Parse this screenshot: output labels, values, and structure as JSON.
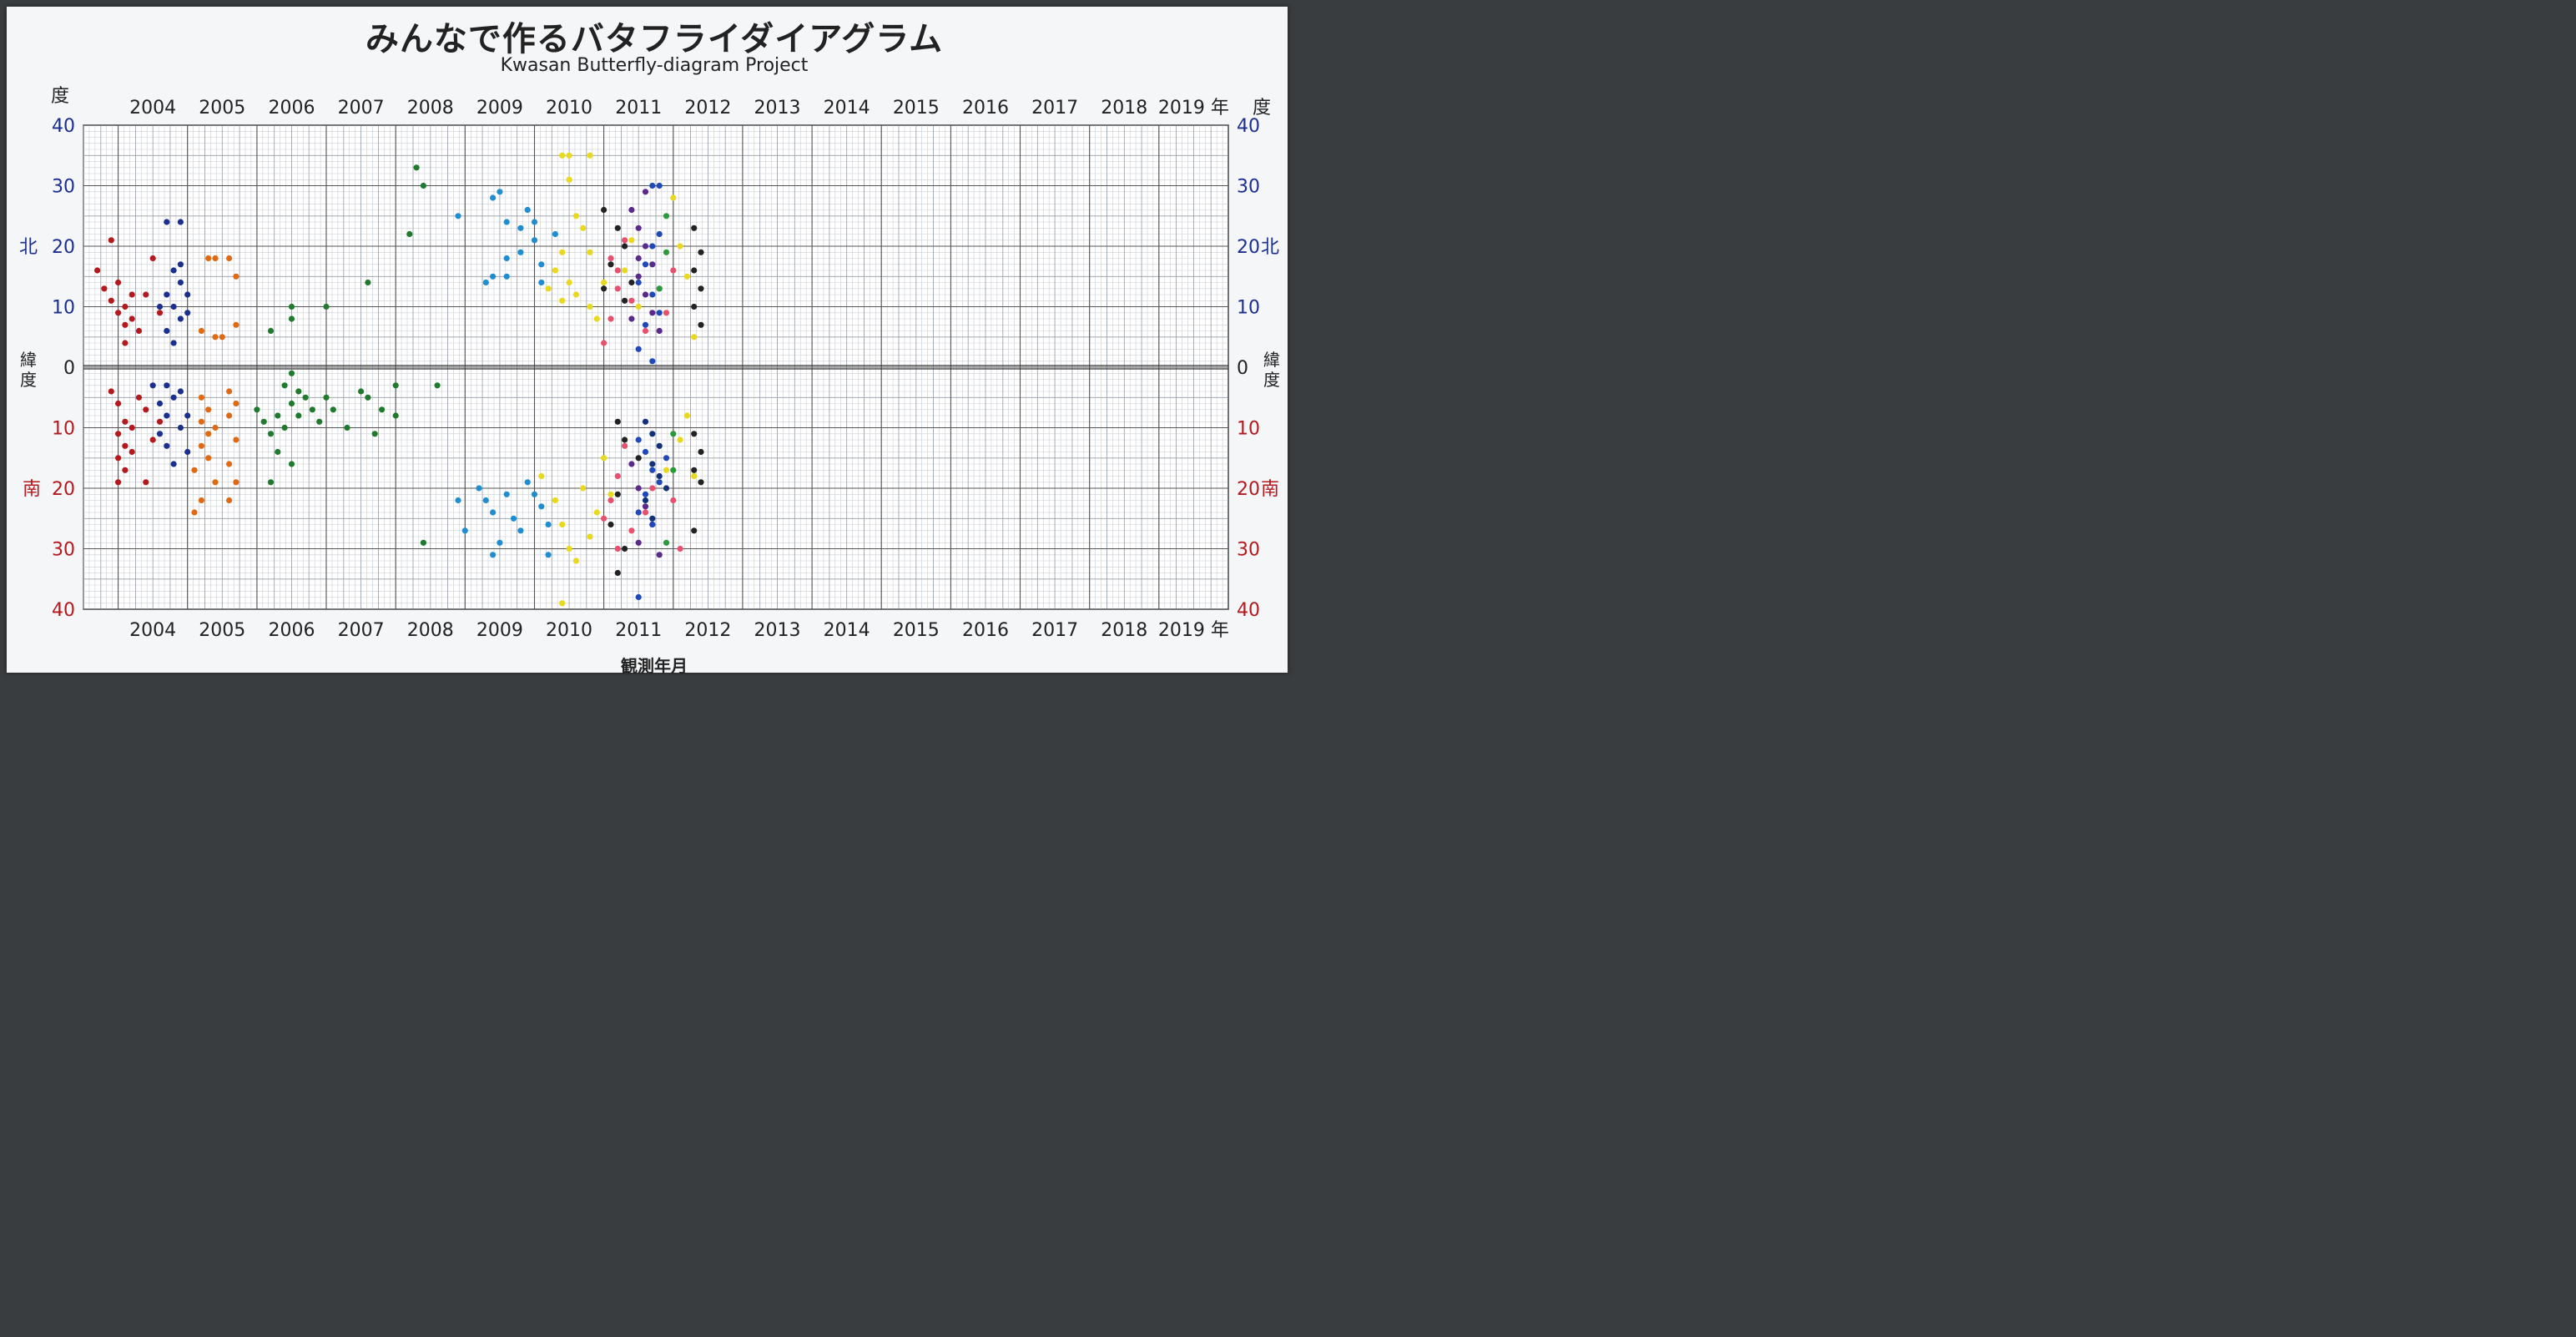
{
  "title": "みんなで作るバタフライダイアグラム",
  "subtitle": "Kwasan Butterfly-diagram Project",
  "chart_data": {
    "type": "scatter",
    "title": "みんなで作るバタフライダイアグラム",
    "subtitle": "Kwasan Butterfly-diagram Project",
    "xlabel": "観測年月",
    "ylabel_top": "度",
    "ylabel_left": "緯度",
    "north_label": "北",
    "south_label": "南",
    "year_suffix": "年",
    "years": [
      "2004",
      "2005",
      "2006",
      "2007",
      "2008",
      "2009",
      "2010",
      "2011",
      "2012",
      "2013",
      "2014",
      "2015",
      "2016",
      "2017",
      "2018",
      "2019"
    ],
    "xlim": [
      2003.5,
      2020.0
    ],
    "ylim": [
      -40,
      40
    ],
    "y_ticks": [
      40,
      30,
      20,
      10,
      0,
      -10,
      -20,
      -30,
      -40
    ],
    "y_tick_labels": [
      "40",
      "30",
      "20",
      "10",
      "0",
      "10",
      "20",
      "30",
      "40"
    ],
    "grid": true,
    "series": [
      {
        "color": "#b3191d",
        "points": [
          [
            2003.9,
            21
          ],
          [
            2003.7,
            16
          ],
          [
            2003.8,
            13
          ],
          [
            2003.9,
            11
          ],
          [
            2004.0,
            9
          ],
          [
            2004.1,
            7
          ],
          [
            2004.0,
            14
          ],
          [
            2004.2,
            12
          ],
          [
            2004.1,
            10
          ],
          [
            2004.2,
            8
          ],
          [
            2004.3,
            6
          ],
          [
            2004.1,
            4
          ],
          [
            2004.4,
            12
          ],
          [
            2004.6,
            9
          ],
          [
            2004.5,
            18
          ],
          [
            2003.9,
            -4
          ],
          [
            2004.0,
            -6
          ],
          [
            2004.1,
            -9
          ],
          [
            2004.0,
            -11
          ],
          [
            2004.1,
            -13
          ],
          [
            2004.0,
            -15
          ],
          [
            2004.1,
            -17
          ],
          [
            2004.2,
            -10
          ],
          [
            2004.0,
            -19
          ],
          [
            2004.2,
            -14
          ],
          [
            2004.4,
            -7
          ],
          [
            2004.5,
            -12
          ],
          [
            2004.6,
            -9
          ],
          [
            2004.4,
            -19
          ],
          [
            2004.3,
            -5
          ]
        ]
      },
      {
        "color": "#1b2f8f",
        "points": [
          [
            2004.7,
            24
          ],
          [
            2004.9,
            24
          ],
          [
            2004.8,
            16
          ],
          [
            2004.9,
            14
          ],
          [
            2004.7,
            12
          ],
          [
            2004.6,
            10
          ],
          [
            2004.8,
            10
          ],
          [
            2004.9,
            8
          ],
          [
            2004.7,
            6
          ],
          [
            2004.8,
            4
          ],
          [
            2005.0,
            12
          ],
          [
            2005.0,
            9
          ],
          [
            2004.9,
            17
          ],
          [
            2004.5,
            -3
          ],
          [
            2004.6,
            -6
          ],
          [
            2004.7,
            -8
          ],
          [
            2004.8,
            -5
          ],
          [
            2004.6,
            -11
          ],
          [
            2004.7,
            -13
          ],
          [
            2004.8,
            -16
          ],
          [
            2004.9,
            -10
          ],
          [
            2005.0,
            -8
          ],
          [
            2005.0,
            -14
          ],
          [
            2004.9,
            -4
          ],
          [
            2004.7,
            -3
          ]
        ]
      },
      {
        "color": "#e06a14",
        "points": [
          [
            2005.3,
            18
          ],
          [
            2005.4,
            18
          ],
          [
            2005.6,
            18
          ],
          [
            2005.7,
            15
          ],
          [
            2005.7,
            7
          ],
          [
            2005.4,
            5
          ],
          [
            2005.2,
            6
          ],
          [
            2005.5,
            5
          ],
          [
            2005.2,
            -5
          ],
          [
            2005.3,
            -7
          ],
          [
            2005.2,
            -9
          ],
          [
            2005.3,
            -11
          ],
          [
            2005.2,
            -13
          ],
          [
            2005.3,
            -15
          ],
          [
            2005.4,
            -10
          ],
          [
            2005.6,
            -4
          ],
          [
            2005.7,
            -6
          ],
          [
            2005.6,
            -8
          ],
          [
            2005.7,
            -12
          ],
          [
            2005.6,
            -16
          ],
          [
            2005.7,
            -19
          ],
          [
            2005.2,
            -22
          ],
          [
            2005.6,
            -22
          ],
          [
            2005.4,
            -19
          ],
          [
            2005.1,
            -24
          ],
          [
            2005.1,
            -17
          ]
        ]
      },
      {
        "color": "#1f7a2e",
        "points": [
          [
            2008.3,
            33
          ],
          [
            2008.4,
            30
          ],
          [
            2008.2,
            22
          ],
          [
            2007.6,
            14
          ],
          [
            2006.5,
            10
          ],
          [
            2006.5,
            8
          ],
          [
            2007.0,
            10
          ],
          [
            2006.2,
            6
          ],
          [
            2006.5,
            -1
          ],
          [
            2006.4,
            -3
          ],
          [
            2006.6,
            -4
          ],
          [
            2006.7,
            -5
          ],
          [
            2006.5,
            -6
          ],
          [
            2006.3,
            -8
          ],
          [
            2006.6,
            -8
          ],
          [
            2006.1,
            -9
          ],
          [
            2006.2,
            -11
          ],
          [
            2006.0,
            -7
          ],
          [
            2006.4,
            -10
          ],
          [
            2006.8,
            -7
          ],
          [
            2007.0,
            -5
          ],
          [
            2007.1,
            -7
          ],
          [
            2006.9,
            -9
          ],
          [
            2007.3,
            -10
          ],
          [
            2007.5,
            -4
          ],
          [
            2007.6,
            -5
          ],
          [
            2006.3,
            -14
          ],
          [
            2006.5,
            -16
          ],
          [
            2006.2,
            -19
          ],
          [
            2008.0,
            -3
          ],
          [
            2008.0,
            -8
          ],
          [
            2007.7,
            -11
          ],
          [
            2008.6,
            -3
          ],
          [
            2008.4,
            -29
          ],
          [
            2007.8,
            -7
          ]
        ]
      },
      {
        "color": "#1e8ed0",
        "points": [
          [
            2009.4,
            28
          ],
          [
            2009.5,
            29
          ],
          [
            2009.6,
            24
          ],
          [
            2009.8,
            23
          ],
          [
            2009.9,
            26
          ],
          [
            2010.0,
            21
          ],
          [
            2009.8,
            19
          ],
          [
            2010.1,
            17
          ],
          [
            2010.3,
            22
          ],
          [
            2010.1,
            14
          ],
          [
            2009.6,
            18
          ],
          [
            2009.4,
            15
          ],
          [
            2008.9,
            25
          ],
          [
            2009.6,
            15
          ],
          [
            2009.3,
            14
          ],
          [
            2010.0,
            24
          ],
          [
            2009.2,
            -20
          ],
          [
            2009.3,
            -22
          ],
          [
            2009.4,
            -24
          ],
          [
            2009.6,
            -21
          ],
          [
            2009.7,
            -25
          ],
          [
            2009.9,
            -19
          ],
          [
            2010.0,
            -21
          ],
          [
            2010.1,
            -23
          ],
          [
            2010.2,
            -26
          ],
          [
            2009.8,
            -27
          ],
          [
            2010.2,
            -31
          ],
          [
            2009.4,
            -31
          ],
          [
            2008.9,
            -22
          ],
          [
            2009.0,
            -27
          ],
          [
            2009.5,
            -29
          ]
        ]
      },
      {
        "color": "#e8d81e",
        "points": [
          [
            2010.4,
            35
          ],
          [
            2010.5,
            35
          ],
          [
            2010.5,
            31
          ],
          [
            2010.8,
            35
          ],
          [
            2010.6,
            25
          ],
          [
            2010.7,
            23
          ],
          [
            2010.8,
            19
          ],
          [
            2010.4,
            19
          ],
          [
            2010.3,
            16
          ],
          [
            2010.5,
            14
          ],
          [
            2010.6,
            12
          ],
          [
            2010.8,
            10
          ],
          [
            2010.9,
            8
          ],
          [
            2011.0,
            14
          ],
          [
            2010.2,
            13
          ],
          [
            2010.4,
            11
          ],
          [
            2011.4,
            21
          ],
          [
            2011.3,
            16
          ],
          [
            2011.5,
            10
          ],
          [
            2012.0,
            28
          ],
          [
            2012.1,
            20
          ],
          [
            2012.2,
            15
          ],
          [
            2012.3,
            5
          ],
          [
            2010.1,
            -18
          ],
          [
            2010.3,
            -22
          ],
          [
            2010.4,
            -26
          ],
          [
            2010.5,
            -30
          ],
          [
            2010.6,
            -32
          ],
          [
            2010.8,
            -28
          ],
          [
            2010.9,
            -24
          ],
          [
            2010.7,
            -20
          ],
          [
            2011.0,
            -15
          ],
          [
            2011.1,
            -21
          ],
          [
            2010.4,
            -39
          ],
          [
            2012.1,
            -12
          ],
          [
            2012.2,
            -8
          ],
          [
            2012.3,
            -18
          ],
          [
            2011.9,
            -17
          ]
        ]
      },
      {
        "color": "#e8506e",
        "points": [
          [
            2011.1,
            18
          ],
          [
            2011.2,
            16
          ],
          [
            2011.3,
            21
          ],
          [
            2011.2,
            13
          ],
          [
            2011.1,
            8
          ],
          [
            2011.0,
            4
          ],
          [
            2011.4,
            11
          ],
          [
            2011.6,
            6
          ],
          [
            2011.8,
            13
          ],
          [
            2012.0,
            16
          ],
          [
            2011.9,
            9
          ],
          [
            2011.3,
            -13
          ],
          [
            2011.2,
            -18
          ],
          [
            2011.1,
            -22
          ],
          [
            2011.0,
            -25
          ],
          [
            2011.2,
            -30
          ],
          [
            2011.4,
            -27
          ],
          [
            2011.6,
            -24
          ],
          [
            2011.7,
            -20
          ],
          [
            2012.0,
            -22
          ],
          [
            2012.1,
            -30
          ]
        ]
      },
      {
        "color": "#5a2a8a",
        "points": [
          [
            2011.4,
            26
          ],
          [
            2011.5,
            23
          ],
          [
            2011.6,
            20
          ],
          [
            2011.7,
            17
          ],
          [
            2011.5,
            15
          ],
          [
            2011.6,
            12
          ],
          [
            2011.7,
            9
          ],
          [
            2011.8,
            6
          ],
          [
            2011.4,
            8
          ],
          [
            2011.5,
            18
          ],
          [
            2011.6,
            29
          ],
          [
            2011.4,
            -16
          ],
          [
            2011.5,
            -20
          ],
          [
            2011.6,
            -23
          ],
          [
            2011.7,
            -26
          ],
          [
            2011.5,
            -29
          ],
          [
            2011.8,
            -31
          ]
        ]
      },
      {
        "color": "#222222",
        "points": [
          [
            2011.0,
            26
          ],
          [
            2011.2,
            23
          ],
          [
            2011.3,
            20
          ],
          [
            2011.1,
            17
          ],
          [
            2011.0,
            13
          ],
          [
            2011.3,
            11
          ],
          [
            2011.4,
            14
          ],
          [
            2011.2,
            -9
          ],
          [
            2011.3,
            -12
          ],
          [
            2011.5,
            -15
          ],
          [
            2011.2,
            -21
          ],
          [
            2011.1,
            -26
          ],
          [
            2011.3,
            -30
          ],
          [
            2011.2,
            -34
          ],
          [
            2012.3,
            23
          ],
          [
            2012.4,
            19
          ],
          [
            2012.3,
            16
          ],
          [
            2012.4,
            13
          ],
          [
            2012.3,
            10
          ],
          [
            2012.4,
            7
          ],
          [
            2012.3,
            -11
          ],
          [
            2012.4,
            -14
          ],
          [
            2012.3,
            -17
          ],
          [
            2012.4,
            -19
          ],
          [
            2012.3,
            -27
          ]
        ]
      },
      {
        "color": "#1f49b8",
        "points": [
          [
            2011.7,
            30
          ],
          [
            2011.8,
            30
          ],
          [
            2011.8,
            22
          ],
          [
            2011.7,
            20
          ],
          [
            2011.6,
            17
          ],
          [
            2011.5,
            14
          ],
          [
            2011.7,
            12
          ],
          [
            2011.8,
            9
          ],
          [
            2011.6,
            7
          ],
          [
            2011.5,
            3
          ],
          [
            2011.7,
            1
          ],
          [
            2011.5,
            -12
          ],
          [
            2011.6,
            -14
          ],
          [
            2011.7,
            -17
          ],
          [
            2011.8,
            -19
          ],
          [
            2011.6,
            -21
          ],
          [
            2011.5,
            -24
          ],
          [
            2011.7,
            -26
          ],
          [
            2011.5,
            -38
          ],
          [
            2011.9,
            -15
          ]
        ]
      },
      {
        "color": "#13307a",
        "points": [
          [
            2011.6,
            -9
          ],
          [
            2011.7,
            -11
          ],
          [
            2011.8,
            -13
          ],
          [
            2011.7,
            -16
          ],
          [
            2011.8,
            -18
          ],
          [
            2011.9,
            -20
          ],
          [
            2011.6,
            -22
          ],
          [
            2011.7,
            -25
          ]
        ]
      },
      {
        "color": "#2a9a3a",
        "points": [
          [
            2011.9,
            25
          ],
          [
            2011.9,
            19
          ],
          [
            2011.8,
            13
          ],
          [
            2012.0,
            -11
          ],
          [
            2012.0,
            -17
          ],
          [
            2011.9,
            -29
          ]
        ]
      }
    ]
  }
}
